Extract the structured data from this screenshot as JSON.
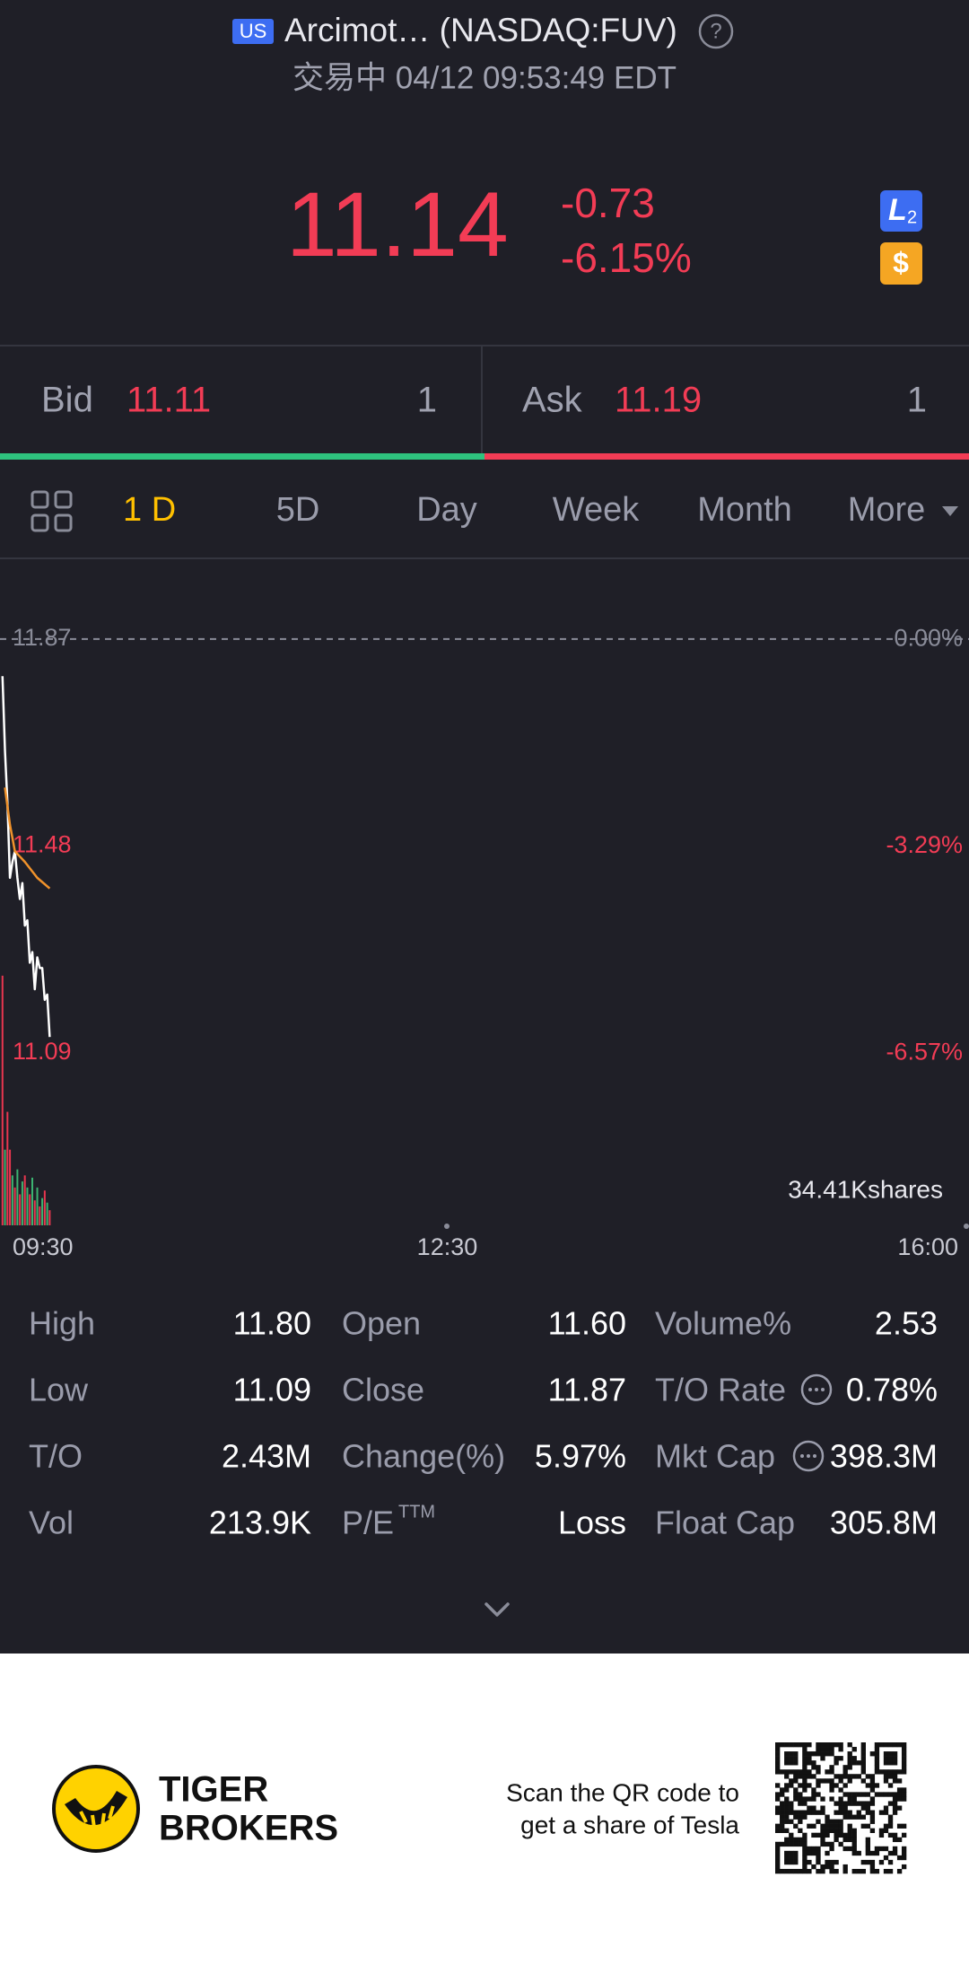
{
  "header": {
    "market_badge": "US",
    "title": "Arcimot… (NASDAQ:FUV)",
    "status": "交易中 04/12 09:53:49 EDT"
  },
  "quote": {
    "price": "11.14",
    "change": "-0.73",
    "change_pct": "-6.15%"
  },
  "badges": {
    "level": "L",
    "level_sub": "2",
    "currency": "$"
  },
  "bid_ask": {
    "bid_label": "Bid",
    "bid": "11.11",
    "bid_size": "1",
    "ask_label": "Ask",
    "ask": "11.19",
    "ask_size": "1"
  },
  "tabs": [
    "1 D",
    "5D",
    "Day",
    "Week",
    "Month",
    "More"
  ],
  "chart_data": {
    "type": "line",
    "x": [
      1,
      2,
      3,
      4,
      5,
      6,
      7,
      8,
      9,
      10,
      11,
      12,
      13,
      14,
      15,
      16,
      17,
      18,
      19,
      20
    ],
    "xlim": [
      0,
      390
    ],
    "xticks": [
      {
        "value": 0,
        "label": "09:30"
      },
      {
        "value": 180,
        "label": "12:30"
      },
      {
        "value": 390,
        "label": "16:00"
      }
    ],
    "ylim": [
      10.87,
      12.0
    ],
    "yticks": [
      11.87,
      11.48,
      11.09
    ],
    "y2lim": [
      -8.42,
      1.1
    ],
    "y2ticks": [
      {
        "value": 0,
        "label": "0.00%"
      },
      {
        "value": -3.29,
        "label": "-3.29%"
      },
      {
        "value": -6.57,
        "label": "-6.57%"
      }
    ],
    "series": [
      {
        "color": "#ffffff",
        "values": [
          11.8,
          11.66,
          11.56,
          11.42,
          11.45,
          11.47,
          11.42,
          11.38,
          11.41,
          11.33,
          11.34,
          11.26,
          11.28,
          11.21,
          11.27,
          11.25,
          11.25,
          11.19,
          11.2,
          11.12
        ]
      },
      {
        "color": "#f0922b",
        "values": [
          null,
          11.59,
          null,
          11.52,
          null,
          11.47,
          null,
          null,
          null,
          11.45,
          null,
          null,
          null,
          null,
          11.42,
          null,
          null,
          null,
          null,
          11.4
        ]
      }
    ],
    "volume_label": "34.41Kshares",
    "volume_ylim": [
      0,
      34.41
    ],
    "volume_series": [
      {
        "color": "#e8364f",
        "values": [
          33.0,
          null,
          15.0,
          10.0,
          null,
          5.0,
          null,
          4.1,
          null,
          6.6,
          null,
          4.1,
          null,
          3.3,
          null,
          2.5,
          null,
          4.6,
          null,
          2.0
        ]
      },
      {
        "color": "#3cb371",
        "values": [
          null,
          10.0,
          null,
          null,
          6.6,
          null,
          7.4,
          null,
          5.8,
          null,
          5.0,
          null,
          6.3,
          null,
          5.0,
          null,
          3.6,
          null,
          3.0,
          null
        ]
      }
    ]
  },
  "stats": [
    [
      {
        "label": "High",
        "value": "11.80"
      },
      {
        "label": "Open",
        "value": "11.60"
      },
      {
        "label": "Volume%",
        "value": "2.53"
      }
    ],
    [
      {
        "label": "Low",
        "value": "11.09"
      },
      {
        "label": "Close",
        "value": "11.87"
      },
      {
        "label": "T/O Rate",
        "value": "0.78%"
      }
    ],
    [
      {
        "label": "T/O",
        "value": "2.43M"
      },
      {
        "label": "Change(%)",
        "value": "5.97%"
      },
      {
        "label": "Mkt Cap",
        "value": "398.3M"
      }
    ],
    [
      {
        "label": "Vol",
        "value": "213.9K"
      },
      {
        "label": "P/E",
        "sup": "TTM",
        "value": "Loss"
      },
      {
        "label": "Float Cap",
        "value": "305.8M"
      }
    ]
  ],
  "footer": {
    "brand_line1": "TIGER",
    "brand_line2": "BROKERS",
    "promo_line1": "Scan the QR code to",
    "promo_line2": "get a share of Tesla"
  }
}
